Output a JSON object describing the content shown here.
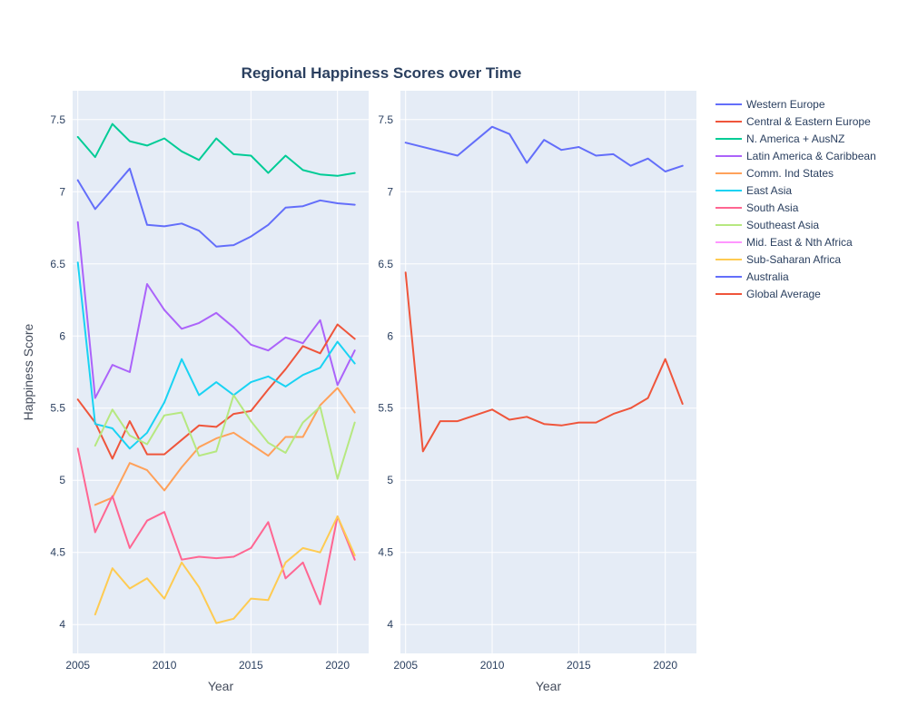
{
  "chart_data": {
    "type": "line",
    "title": "Regional Happiness Scores over Time",
    "ylabel": "Happiness Score",
    "ylim": [
      3.8,
      7.7
    ],
    "yticks": [
      4,
      4.5,
      5,
      5.5,
      6,
      6.5,
      7,
      7.5
    ],
    "ytick_labels": [
      "4",
      "4.5",
      "5",
      "5.5",
      "6",
      "6.5",
      "7",
      "7.5"
    ],
    "xlim": [
      2004.7,
      2021.8
    ],
    "xticks": [
      2005,
      2010,
      2015,
      2020
    ],
    "xtick_labels": [
      "2005",
      "2010",
      "2015",
      "2020"
    ],
    "legend": [
      {
        "name": "Western Europe",
        "color": "#636efa"
      },
      {
        "name": "Central & Eastern Europe",
        "color": "#EF553B"
      },
      {
        "name": "N. America + AusNZ",
        "color": "#00cc96"
      },
      {
        "name": "Latin America & Caribbean",
        "color": "#ab63fa"
      },
      {
        "name": "Comm. Ind States",
        "color": "#FFA15A"
      },
      {
        "name": "East Asia",
        "color": "#19d3f3"
      },
      {
        "name": "South Asia",
        "color": "#FF6692"
      },
      {
        "name": "Southeast Asia",
        "color": "#B6E880"
      },
      {
        "name": "Mid. East & Nth Africa",
        "color": "#FF97FF"
      },
      {
        "name": "Sub-Saharan Africa",
        "color": "#FECB52"
      },
      {
        "name": "Australia",
        "color": "#636efa"
      },
      {
        "name": "Global Average",
        "color": "#EF553B"
      }
    ],
    "panels": [
      {
        "xlabel": "Year",
        "series": [
          {
            "name": "N. America + AusNZ",
            "color": "#00cc96",
            "x": [
              2005,
              2006,
              2007,
              2008,
              2009,
              2010,
              2011,
              2012,
              2013,
              2014,
              2015,
              2016,
              2017,
              2018,
              2019,
              2020,
              2021
            ],
            "y": [
              7.38,
              7.24,
              7.47,
              7.35,
              7.32,
              7.37,
              7.28,
              7.22,
              7.37,
              7.26,
              7.25,
              7.13,
              7.25,
              7.15,
              7.12,
              7.11,
              7.13
            ]
          },
          {
            "name": "Western Europe",
            "color": "#636efa",
            "x": [
              2005,
              2006,
              2007,
              2008,
              2009,
              2010,
              2011,
              2012,
              2013,
              2014,
              2015,
              2016,
              2017,
              2018,
              2019,
              2020,
              2021
            ],
            "y": [
              7.08,
              6.88,
              7.02,
              7.16,
              6.77,
              6.76,
              6.78,
              6.73,
              6.62,
              6.63,
              6.69,
              6.77,
              6.89,
              6.9,
              6.94,
              6.92,
              6.91
            ]
          },
          {
            "name": "Latin America & Caribbean",
            "color": "#ab63fa",
            "x": [
              2005,
              2006,
              2007,
              2008,
              2009,
              2010,
              2011,
              2012,
              2013,
              2014,
              2015,
              2016,
              2017,
              2018,
              2019,
              2020,
              2021
            ],
            "y": [
              6.79,
              5.57,
              5.8,
              5.75,
              6.36,
              6.18,
              6.05,
              6.09,
              6.16,
              6.06,
              5.94,
              5.9,
              5.99,
              5.95,
              6.11,
              5.66,
              5.9
            ]
          },
          {
            "name": "Central & Eastern Europe",
            "color": "#EF553B",
            "x": [
              2005,
              2006,
              2007,
              2008,
              2009,
              2010,
              2011,
              2012,
              2013,
              2014,
              2015,
              2016,
              2017,
              2018,
              2019,
              2020,
              2021
            ],
            "y": [
              5.56,
              5.4,
              5.15,
              5.41,
              5.18,
              5.18,
              5.28,
              5.38,
              5.37,
              5.46,
              5.48,
              5.63,
              5.77,
              5.93,
              5.88,
              6.08,
              5.98
            ]
          },
          {
            "name": "East Asia",
            "color": "#19d3f3",
            "x": [
              2005,
              2006,
              2007,
              2008,
              2009,
              2010,
              2011,
              2012,
              2013,
              2014,
              2015,
              2016,
              2017,
              2018,
              2019,
              2020,
              2021
            ],
            "y": [
              6.51,
              5.39,
              5.36,
              5.22,
              5.33,
              5.54,
              5.84,
              5.59,
              5.68,
              5.59,
              5.68,
              5.72,
              5.65,
              5.73,
              5.78,
              5.96,
              5.81
            ]
          },
          {
            "name": "Comm. Ind States",
            "color": "#FFA15A",
            "x": [
              2006,
              2007,
              2008,
              2009,
              2010,
              2011,
              2012,
              2013,
              2014,
              2015,
              2016,
              2017,
              2018,
              2019,
              2020,
              2021
            ],
            "y": [
              4.83,
              4.88,
              5.12,
              5.07,
              4.93,
              5.09,
              5.23,
              5.29,
              5.33,
              5.25,
              5.17,
              5.3,
              5.3,
              5.52,
              5.64,
              5.47
            ]
          },
          {
            "name": "Southeast Asia",
            "color": "#B6E880",
            "x": [
              2006,
              2007,
              2008,
              2009,
              2010,
              2011,
              2012,
              2013,
              2014,
              2015,
              2016,
              2017,
              2018,
              2019,
              2020,
              2021
            ],
            "y": [
              5.24,
              5.49,
              5.31,
              5.25,
              5.45,
              5.47,
              5.17,
              5.2,
              5.59,
              5.41,
              5.26,
              5.19,
              5.4,
              5.51,
              5.01,
              5.4
            ]
          },
          {
            "name": "South Asia",
            "color": "#FF6692",
            "x": [
              2005,
              2006,
              2007,
              2008,
              2009,
              2010,
              2011,
              2012,
              2013,
              2014,
              2015,
              2016,
              2017,
              2018,
              2019,
              2020,
              2021
            ],
            "y": [
              5.22,
              4.64,
              4.89,
              4.53,
              4.72,
              4.78,
              4.45,
              4.47,
              4.46,
              4.47,
              4.53,
              4.71,
              4.32,
              4.43,
              4.14,
              4.75,
              4.45
            ]
          },
          {
            "name": "Sub-Saharan Africa",
            "color": "#FECB52",
            "x": [
              2006,
              2007,
              2008,
              2009,
              2010,
              2011,
              2012,
              2013,
              2014,
              2015,
              2016,
              2017,
              2018,
              2019,
              2020,
              2021
            ],
            "y": [
              4.07,
              4.39,
              4.25,
              4.32,
              4.18,
              4.43,
              4.26,
              4.01,
              4.04,
              4.18,
              4.17,
              4.43,
              4.53,
              4.5,
              4.75,
              4.48
            ]
          }
        ]
      },
      {
        "xlabel": "Year",
        "series": [
          {
            "name": "Australia",
            "color": "#636efa",
            "x": [
              2005,
              2008,
              2010,
              2011,
              2012,
              2013,
              2014,
              2015,
              2016,
              2017,
              2018,
              2019,
              2020,
              2021
            ],
            "y": [
              7.34,
              7.25,
              7.45,
              7.4,
              7.2,
              7.36,
              7.29,
              7.31,
              7.25,
              7.26,
              7.18,
              7.23,
              7.14,
              7.18
            ]
          },
          {
            "name": "Global Average",
            "color": "#EF553B",
            "x": [
              2005,
              2006,
              2007,
              2008,
              2009,
              2010,
              2011,
              2012,
              2013,
              2014,
              2015,
              2016,
              2017,
              2018,
              2019,
              2020,
              2021
            ],
            "y": [
              6.44,
              5.2,
              5.41,
              5.41,
              5.45,
              5.49,
              5.42,
              5.44,
              5.39,
              5.38,
              5.4,
              5.4,
              5.46,
              5.5,
              5.57,
              5.84,
              5.53
            ]
          }
        ]
      }
    ]
  }
}
